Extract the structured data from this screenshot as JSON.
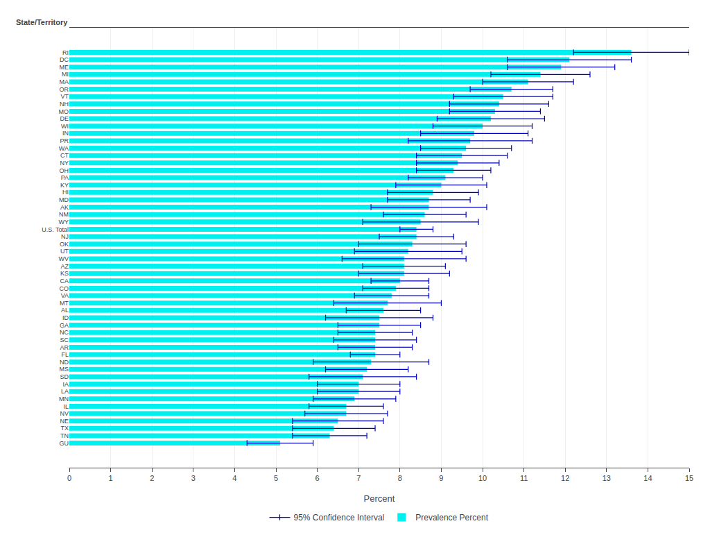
{
  "chart_data": {
    "type": "bar",
    "orientation": "horizontal",
    "xlabel": "Percent",
    "annotations": [
      "State/Territory"
    ],
    "categories": [
      "RI",
      "DC",
      "ME",
      "MI",
      "MA",
      "OR",
      "VT",
      "NH",
      "MO",
      "DE",
      "WI",
      "IN",
      "PR",
      "WA",
      "CT",
      "NY",
      "OH",
      "PA",
      "KY",
      "HI",
      "MD",
      "AK",
      "NM",
      "WY",
      "U.S. Total",
      "NJ",
      "OK",
      "UT",
      "WV",
      "AZ",
      "KS",
      "CA",
      "CO",
      "VA",
      "MT",
      "AL",
      "ID",
      "GA",
      "NC",
      "SC",
      "AR",
      "FL",
      "ND",
      "MS",
      "SD",
      "IA",
      "LA",
      "MN",
      "IL",
      "NV",
      "NE",
      "TX",
      "TN",
      "GU"
    ],
    "series": [
      {
        "name": "Prevalence Percent",
        "color": "#00EFEF",
        "values": [
          13.6,
          12.1,
          11.9,
          11.4,
          11.1,
          10.7,
          10.5,
          10.4,
          10.3,
          10.2,
          10.0,
          9.8,
          9.7,
          9.6,
          9.5,
          9.4,
          9.3,
          9.1,
          9.0,
          8.8,
          8.7,
          8.7,
          8.6,
          8.5,
          8.4,
          8.4,
          8.3,
          8.2,
          8.1,
          8.1,
          8.1,
          8.0,
          7.9,
          7.8,
          7.7,
          7.6,
          7.5,
          7.5,
          7.4,
          7.4,
          7.4,
          7.4,
          7.3,
          7.2,
          7.1,
          7.0,
          7.0,
          6.9,
          6.7,
          6.7,
          6.5,
          6.4,
          6.3,
          5.1
        ],
        "error_name": "95% Confidence Interval",
        "error_color": "#0000BB",
        "ci_low": [
          12.2,
          10.6,
          10.6,
          10.2,
          10.0,
          9.7,
          9.3,
          9.2,
          9.2,
          8.9,
          8.8,
          8.5,
          8.2,
          8.5,
          8.4,
          8.4,
          8.4,
          8.2,
          7.9,
          7.7,
          7.7,
          7.3,
          7.6,
          7.1,
          8.0,
          7.5,
          7.0,
          6.9,
          6.6,
          7.1,
          7.0,
          7.3,
          7.1,
          6.9,
          6.4,
          6.7,
          6.2,
          6.5,
          6.5,
          6.4,
          6.5,
          6.8,
          5.9,
          6.2,
          5.8,
          6.0,
          6.0,
          5.9,
          5.8,
          5.7,
          5.4,
          5.4,
          5.4,
          4.3
        ],
        "ci_high": [
          15.0,
          13.6,
          13.2,
          12.6,
          12.2,
          11.7,
          11.7,
          11.6,
          11.4,
          11.5,
          11.2,
          11.1,
          11.2,
          10.7,
          10.6,
          10.4,
          10.2,
          10.0,
          10.1,
          9.9,
          9.7,
          10.1,
          9.6,
          9.9,
          8.8,
          9.3,
          9.6,
          9.5,
          9.6,
          9.1,
          9.2,
          8.7,
          8.7,
          8.7,
          9.0,
          8.5,
          8.8,
          8.5,
          8.3,
          8.4,
          8.3,
          8.0,
          8.7,
          8.2,
          8.4,
          8.0,
          8.0,
          7.9,
          7.6,
          7.7,
          7.6,
          7.4,
          7.2,
          5.9
        ]
      }
    ],
    "xlim": [
      0,
      15
    ],
    "xticks": [
      0,
      1,
      2,
      3,
      4,
      5,
      6,
      7,
      8,
      9,
      10,
      11,
      12,
      13,
      14,
      15
    ],
    "grid": true,
    "legend": "bottom"
  }
}
